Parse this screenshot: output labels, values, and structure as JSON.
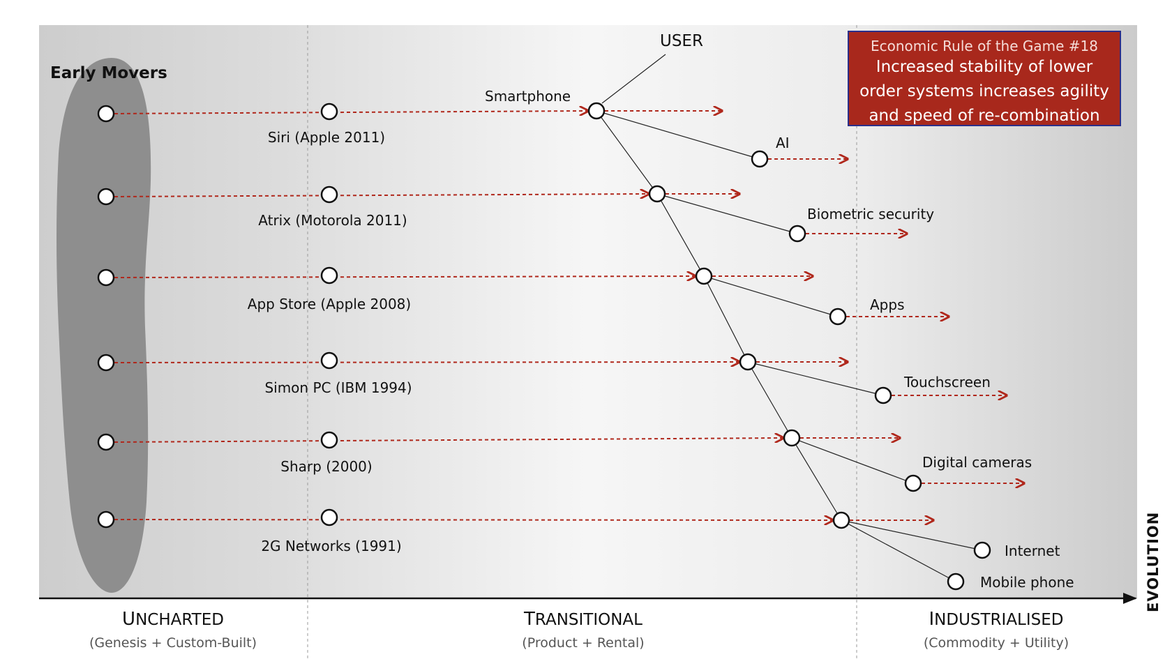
{
  "axis": {
    "evolution_label": "EVOLUTION"
  },
  "phases": [
    {
      "title_initial": "U",
      "title_rest": "NCHARTED",
      "subtitle": "(Genesis + Custom-Built)"
    },
    {
      "title_initial": "T",
      "title_rest": "RANSITIONAL",
      "subtitle": "(Product + Rental)"
    },
    {
      "title_initial": "I",
      "title_rest": "NDUSTRIALISED",
      "subtitle": "(Commodity + Utility)"
    }
  ],
  "early_movers_label": "Early Movers",
  "rule_box": {
    "heading": "Economic Rule of the Game #18",
    "lines": [
      "Increased stability of lower",
      "order systems increases agility",
      "and speed of re-combination"
    ]
  },
  "user_label": "USER",
  "rows": [
    {
      "label": "Siri (Apple 2011)",
      "spine_label": "Smartphone",
      "branch_label": "AI"
    },
    {
      "label": "Atrix (Motorola 2011)",
      "spine_label": "",
      "branch_label": "Biometric security"
    },
    {
      "label": "App Store (Apple 2008)",
      "spine_label": "",
      "branch_label": "Apps"
    },
    {
      "label": "Simon PC (IBM 1994)",
      "spine_label": "",
      "branch_label": "Touchscreen"
    },
    {
      "label": "Sharp (2000)",
      "spine_label": "",
      "branch_label": "Digital cameras"
    },
    {
      "label": "2G Networks (1991)",
      "spine_label": "",
      "branch_label": "Internet"
    }
  ],
  "extra_branch_label": "Mobile phone",
  "colors": {
    "arrow": "#b0281c",
    "rule_box_bg": "#a8281c",
    "rule_box_border": "#2a2f8a"
  }
}
